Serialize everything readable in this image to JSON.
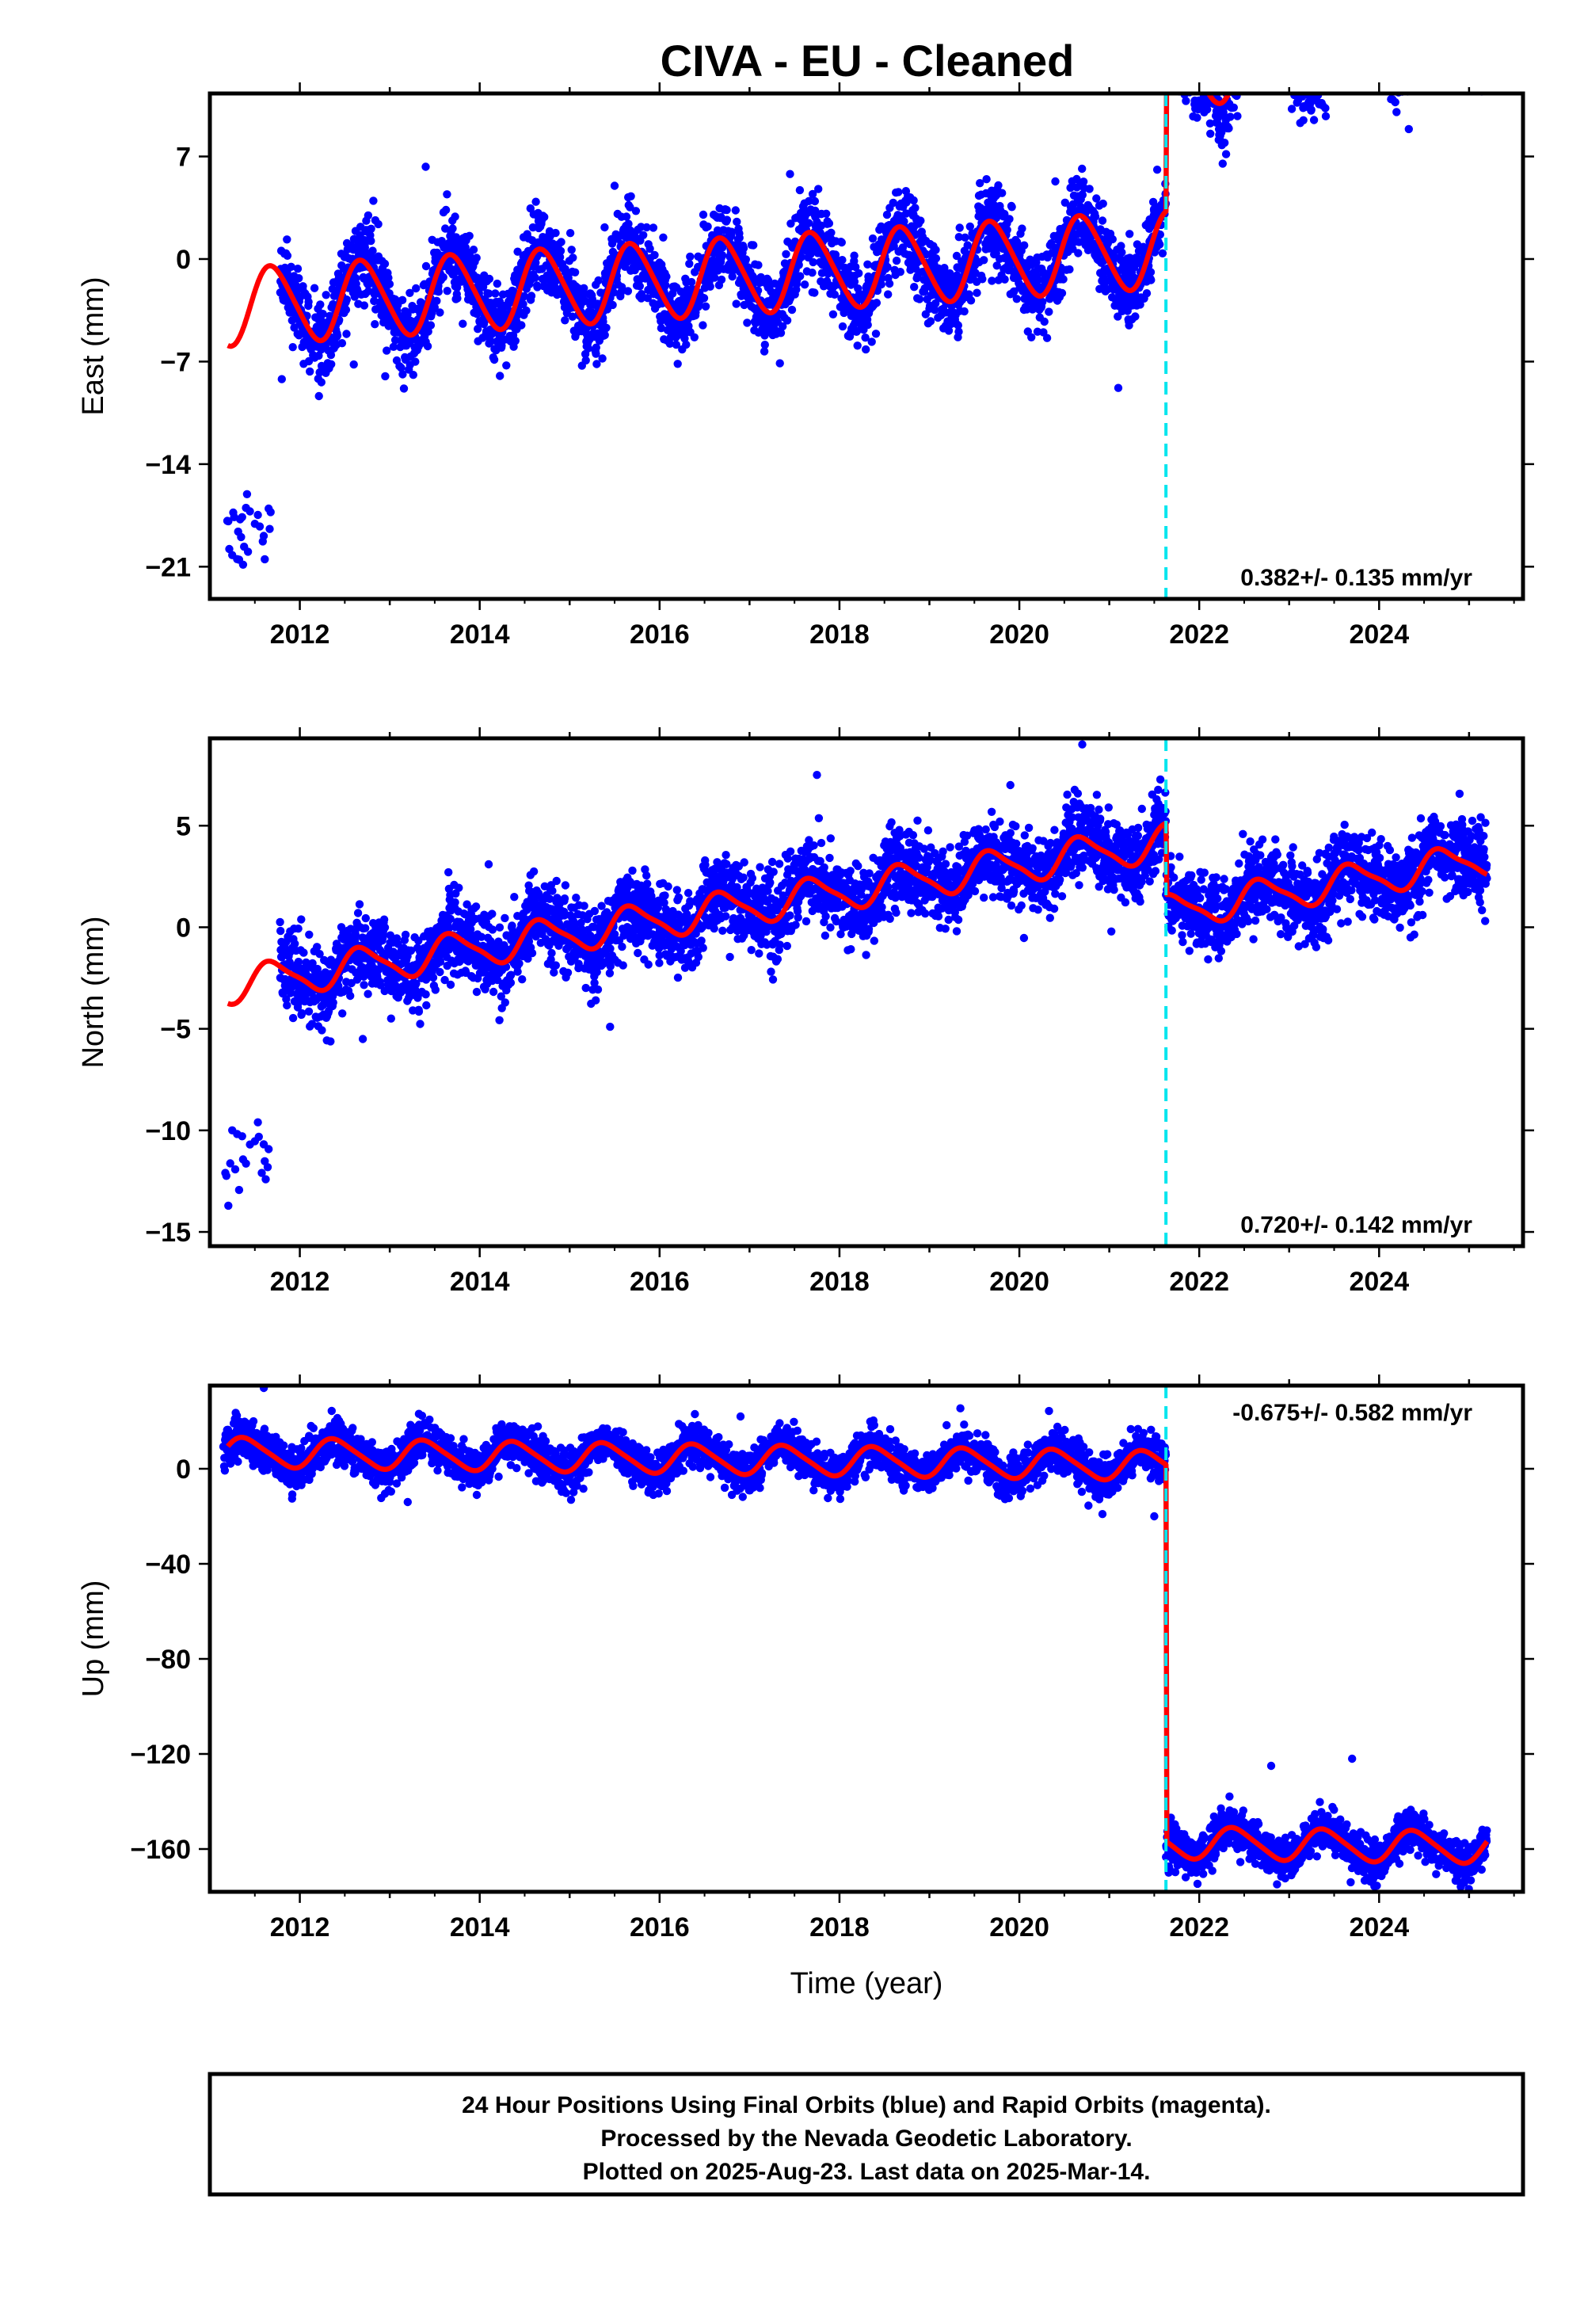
{
  "title": "CIVA  - EU - Cleaned",
  "colors": {
    "final_orbits": "#0000ff",
    "model_fit": "#ff0000",
    "discontinuity": "#00e5ee",
    "frame": "#000000"
  },
  "footer": {
    "line1": "24 Hour Positions Using Final Orbits (blue) and Rapid Orbits (magenta).",
    "line2": "Processed by the Nevada Geodetic Laboratory.",
    "line3": "Plotted on 2025-Aug-23. Last data on 2025-Mar-14."
  },
  "chart_data": [
    {
      "type": "scatter",
      "component": "east",
      "ylabel": "East (mm)",
      "xlabel": "",
      "xlim": [
        2011.0,
        2025.6
      ],
      "ylim": [
        -23.2,
        11.3
      ],
      "xticks": [
        2012,
        2014,
        2016,
        2018,
        2020,
        2022,
        2024
      ],
      "xtick_labels": [
        "2012",
        "2014",
        "2016",
        "2018",
        "2020",
        "2022",
        "2024"
      ],
      "yticks": [
        -21,
        -14,
        -7,
        0,
        7
      ],
      "ytick_labels": [
        "−21",
        "−14",
        "−7",
        "0",
        "7"
      ],
      "rate_label": "0.382+/- 0.135 mm/yr",
      "rate_position": "bottom-right",
      "discontinuity_year": 2021.63,
      "scatter": {
        "seed": 11,
        "early_cluster": {
          "start": 2011.15,
          "end": 2011.68,
          "value": -18.5,
          "spread": 1.8
        },
        "start": 2011.78,
        "end": 2025.2,
        "noise": 1.35,
        "outliers": [
          [
            2011.8,
            -8.2
          ],
          [
            2012.95,
            -8.0
          ],
          [
            2021.1,
            -8.8
          ],
          [
            2013.4,
            6.3
          ],
          [
            2017.45,
            5.8
          ],
          [
            2015.5,
            5.0
          ],
          [
            2020.4,
            5.3
          ],
          [
            2012.6,
            -7.2
          ]
        ]
      },
      "model": {
        "start": 2011.2,
        "end": 2025.2,
        "segments": [
          {
            "from": 2011.2,
            "to": 2021.63,
            "offset": -3.3,
            "rate": 0.38,
            "amplitude": 2.6,
            "phase_year": 2011.45,
            "semi_amplitude": 0.3
          },
          {
            "from": 2021.63,
            "to": 2025.2,
            "offset": 1.8,
            "rate": 1.05,
            "amplitude": 2.7,
            "phase_year": 2011.45,
            "semi_amplitude": 0.3
          }
        ]
      }
    },
    {
      "type": "scatter",
      "component": "north",
      "ylabel": "North (mm)",
      "xlabel": "",
      "xlim": [
        2011.0,
        2025.6
      ],
      "ylim": [
        -15.7,
        9.3
      ],
      "xticks": [
        2012,
        2014,
        2016,
        2018,
        2020,
        2022,
        2024
      ],
      "xtick_labels": [
        "2012",
        "2014",
        "2016",
        "2018",
        "2020",
        "2022",
        "2024"
      ],
      "yticks": [
        -15,
        -10,
        -5,
        0,
        5
      ],
      "ytick_labels": [
        "−15",
        "−10",
        "−5",
        "0",
        "5"
      ],
      "rate_label": "0.720+/- 0.142 mm/yr",
      "rate_position": "bottom-right",
      "discontinuity_year": 2021.63,
      "scatter": {
        "seed": 23,
        "early_cluster": {
          "start": 2011.15,
          "end": 2011.68,
          "value": -11.8,
          "spread": 1.6
        },
        "start": 2011.78,
        "end": 2025.2,
        "noise": 0.95,
        "outliers": [
          [
            2020.7,
            9.0
          ],
          [
            2017.75,
            7.5
          ],
          [
            2015.45,
            -4.9
          ],
          [
            2024.35,
            -0.5
          ],
          [
            2014.1,
            3.1
          ],
          [
            2012.7,
            -5.5
          ],
          [
            2019.9,
            7.0
          ]
        ]
      },
      "model": {
        "start": 2011.2,
        "end": 2025.2,
        "segments": [
          {
            "from": 2011.2,
            "to": 2021.63,
            "offset": -2.9,
            "rate": 0.68,
            "amplitude": 0.85,
            "phase_year": 2011.45,
            "semi_amplitude": 0.2
          },
          {
            "from": 2021.63,
            "to": 2025.2,
            "offset": -7.1,
            "rate": 0.75,
            "amplitude": 0.8,
            "phase_year": 2011.45,
            "semi_amplitude": 0.2
          }
        ]
      }
    },
    {
      "type": "scatter",
      "component": "up",
      "ylabel": "Up (mm)",
      "xlabel": "Time (year)",
      "xlim": [
        2011.0,
        2025.6
      ],
      "ylim": [
        -178,
        35
      ],
      "xticks": [
        2012,
        2014,
        2016,
        2018,
        2020,
        2022,
        2024
      ],
      "xtick_labels": [
        "2012",
        "2014",
        "2016",
        "2018",
        "2020",
        "2022",
        "2024"
      ],
      "yticks": [
        -160,
        -120,
        -80,
        -40,
        0
      ],
      "ytick_labels": [
        "−160",
        "−120",
        "−80",
        "−40",
        "0"
      ],
      "rate_label": "-0.675+/- 0.582 mm/yr",
      "rate_position": "top-right",
      "discontinuity_year": 2021.63,
      "scatter": {
        "seed": 37,
        "early_cluster": null,
        "start": 2011.15,
        "end": 2025.2,
        "noise": 4.2,
        "outliers": [
          [
            2011.6,
            34.0
          ],
          [
            2021.5,
            -20.0
          ],
          [
            2022.8,
            -125.0
          ],
          [
            2023.7,
            -122.0
          ],
          [
            2013.2,
            -14.0
          ],
          [
            2016.9,
            22.0
          ]
        ]
      },
      "model": {
        "start": 2011.2,
        "end": 2025.2,
        "segments": [
          {
            "from": 2011.2,
            "to": 2021.63,
            "offset": 7.0,
            "rate": -0.55,
            "amplitude": 6.0,
            "phase_year": 2011.15,
            "semi_amplitude": 1.0
          },
          {
            "from": 2021.63,
            "to": 2025.2,
            "offset": -151.0,
            "rate": -0.6,
            "amplitude": 6.5,
            "phase_year": 2011.15,
            "semi_amplitude": 1.0
          }
        ]
      }
    }
  ]
}
